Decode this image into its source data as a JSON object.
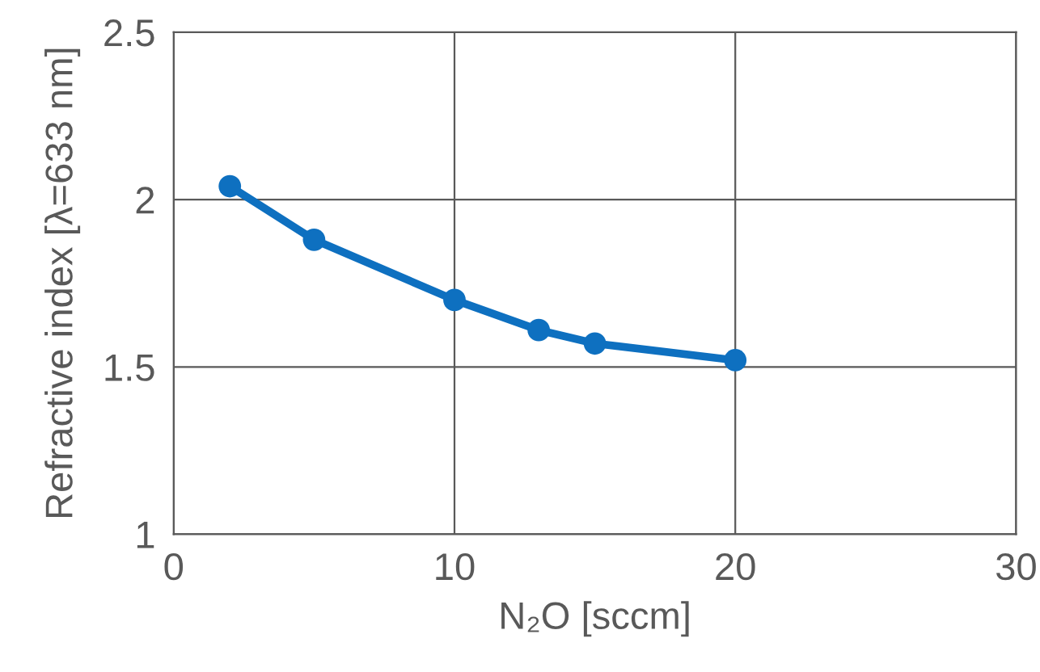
{
  "chart_data": {
    "type": "line",
    "xlabel": "N₂O [sccm]",
    "ylabel": "Refractive index [λ=633 nm]",
    "x": [
      2,
      5,
      10,
      13,
      15,
      20
    ],
    "series": [
      {
        "color": "#0e70c0",
        "values": [
          2.04,
          1.88,
          1.7,
          1.61,
          1.57,
          1.52
        ]
      }
    ],
    "xlim": [
      0,
      30
    ],
    "xticks": [
      0,
      10,
      20,
      30
    ],
    "ylim": [
      1,
      2.5
    ],
    "yticks": [
      1,
      1.5,
      2,
      2.5
    ],
    "grid": true,
    "marker": "circle",
    "line_style": "solid"
  }
}
